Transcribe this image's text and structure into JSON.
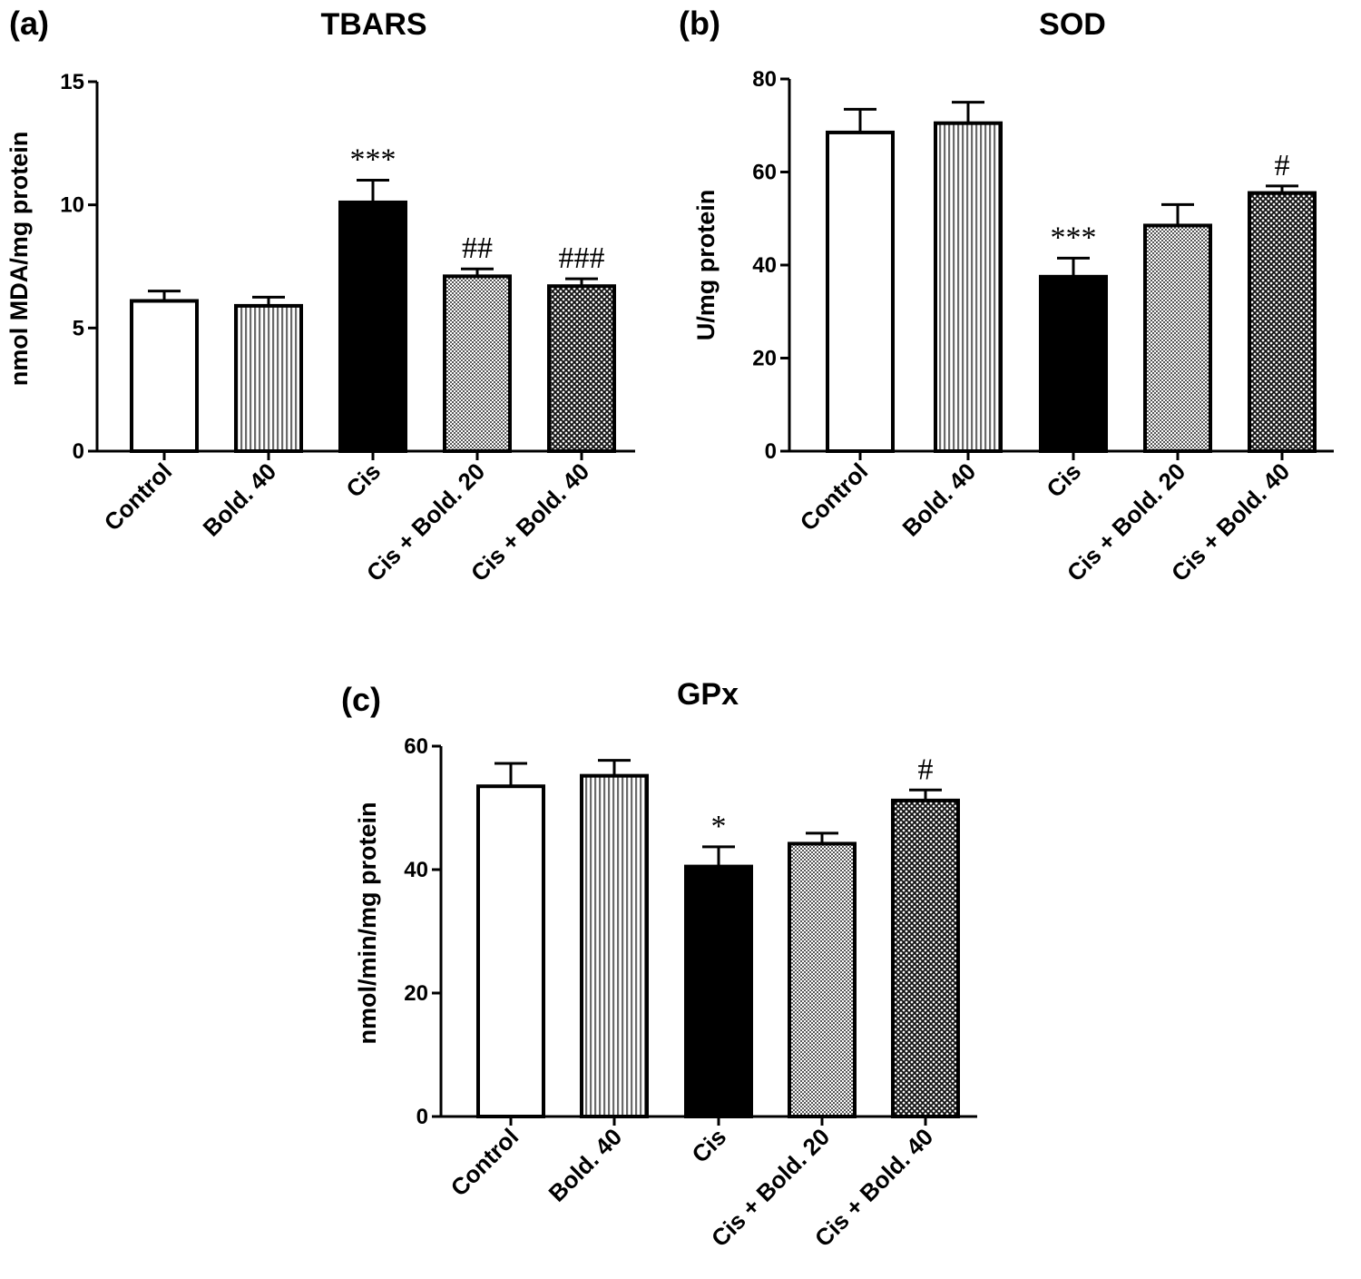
{
  "figure": {
    "panels": [
      "(a)",
      "(b)",
      "(c)"
    ]
  },
  "chart_data": [
    {
      "panel": "(a)",
      "type": "bar",
      "title": "TBARS",
      "xlabel": "",
      "ylabel": "nmol MDA/mg protein",
      "ylim": [
        0,
        15
      ],
      "yticks": [
        0,
        5,
        10,
        15
      ],
      "categories": [
        "Control",
        "Bold. 40",
        "Cis",
        "Cis + Bold. 20",
        "Cis + Bold. 40"
      ],
      "values": [
        6.1,
        5.9,
        10.1,
        7.1,
        6.7
      ],
      "errors": [
        0.4,
        0.35,
        0.9,
        0.3,
        0.3
      ],
      "annotations": [
        "",
        "",
        "***",
        "##",
        "###"
      ],
      "fills": [
        "white",
        "vertical-stripes",
        "black",
        "fine-checker",
        "cross-hatch"
      ]
    },
    {
      "panel": "(b)",
      "type": "bar",
      "title": "SOD",
      "xlabel": "",
      "ylabel": "U/mg protein",
      "ylim": [
        0,
        80
      ],
      "yticks": [
        0,
        20,
        40,
        60,
        80
      ],
      "categories": [
        "Control",
        "Bold. 40",
        "Cis",
        "Cis + Bold. 20",
        "Cis + Bold. 40"
      ],
      "values": [
        68.5,
        70.5,
        37.5,
        48.5,
        55.5
      ],
      "errors": [
        5.0,
        4.5,
        4.0,
        4.5,
        1.5
      ],
      "annotations": [
        "",
        "",
        "***",
        "",
        "#"
      ],
      "fills": [
        "white",
        "vertical-stripes",
        "black",
        "fine-checker",
        "cross-hatch"
      ]
    },
    {
      "panel": "(c)",
      "type": "bar",
      "title": "GPx",
      "xlabel": "",
      "ylabel": "nmol/min/mg protein",
      "ylim": [
        0,
        60
      ],
      "yticks": [
        0,
        20,
        40,
        60
      ],
      "categories": [
        "Control",
        "Bold. 40",
        "Cis",
        "Cis + Bold. 20",
        "Cis + Bold. 40"
      ],
      "values": [
        53.5,
        55.2,
        40.5,
        44.2,
        51.2
      ],
      "errors": [
        3.7,
        2.5,
        3.2,
        1.7,
        1.7
      ],
      "annotations": [
        "",
        "",
        "*",
        "",
        "#"
      ],
      "fills": [
        "white",
        "vertical-stripes",
        "black",
        "fine-checker",
        "cross-hatch"
      ]
    }
  ]
}
